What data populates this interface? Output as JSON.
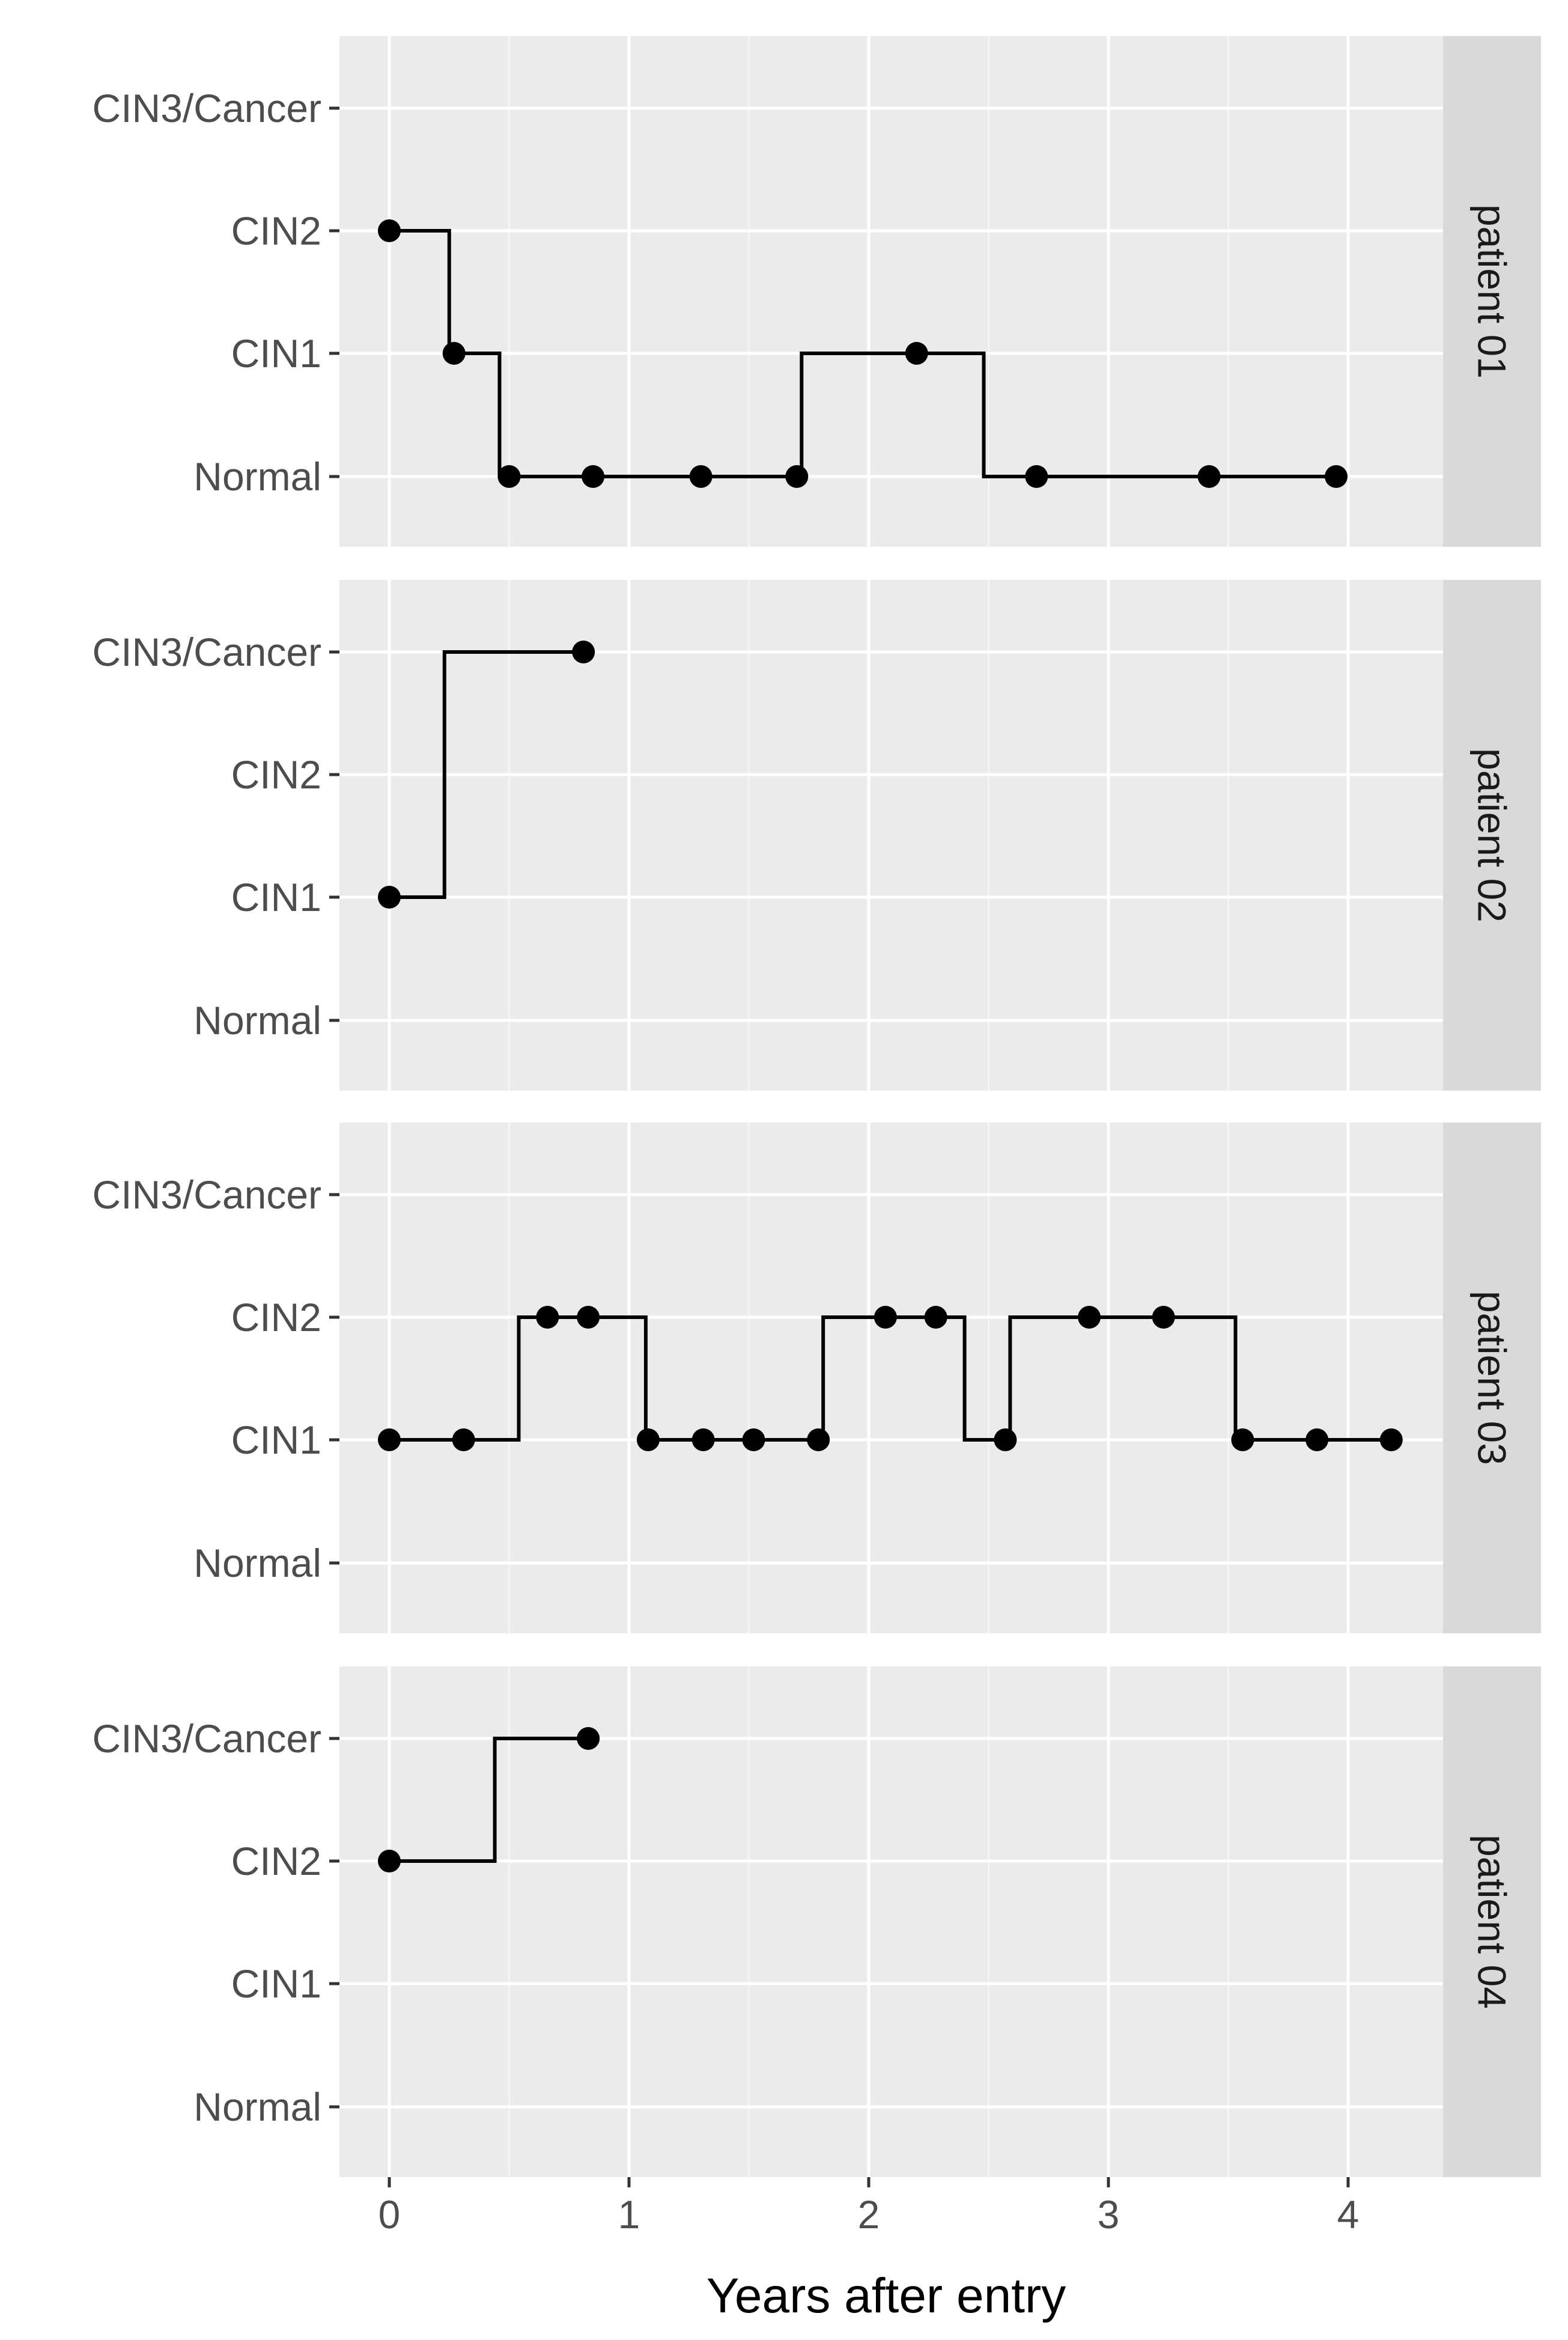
{
  "chart_data": {
    "type": "line",
    "subtype": "step-with-points",
    "xlabel": "Years after entry",
    "ylabel": "",
    "x_ticks": [
      0,
      1,
      2,
      3,
      4
    ],
    "xlim": [
      -0.2,
      4.4
    ],
    "y_levels": [
      "Normal",
      "CIN1",
      "CIN2",
      "CIN3/Cancer"
    ],
    "grid": true,
    "legend": "none",
    "colors": {
      "panel_bg": "#ebebeb",
      "strip_bg": "#d9d9d9",
      "grid_major": "#ffffff",
      "grid_minor": "#f5f5f5",
      "line": "#000000",
      "point": "#000000",
      "tick_text": "#4d4d4d"
    },
    "panels": [
      {
        "strip_label": "patient 01",
        "points": [
          {
            "x": 0.0,
            "y": "CIN2"
          },
          {
            "x": 0.27,
            "y": "CIN1"
          },
          {
            "x": 0.5,
            "y": "Normal"
          },
          {
            "x": 0.85,
            "y": "Normal"
          },
          {
            "x": 1.3,
            "y": "Normal"
          },
          {
            "x": 1.7,
            "y": "Normal"
          },
          {
            "x": 2.2,
            "y": "CIN1"
          },
          {
            "x": 2.7,
            "y": "Normal"
          },
          {
            "x": 3.42,
            "y": "Normal"
          },
          {
            "x": 3.95,
            "y": "Normal"
          }
        ],
        "step_path": [
          {
            "x": 0.0,
            "y": "CIN2"
          },
          {
            "x": 0.25,
            "y": "CIN2"
          },
          {
            "x": 0.25,
            "y": "CIN1"
          },
          {
            "x": 0.46,
            "y": "CIN1"
          },
          {
            "x": 0.46,
            "y": "Normal"
          },
          {
            "x": 1.72,
            "y": "Normal"
          },
          {
            "x": 1.72,
            "y": "CIN1"
          },
          {
            "x": 2.48,
            "y": "CIN1"
          },
          {
            "x": 2.48,
            "y": "Normal"
          },
          {
            "x": 3.95,
            "y": "Normal"
          }
        ]
      },
      {
        "strip_label": "patient 02",
        "points": [
          {
            "x": 0.0,
            "y": "CIN1"
          },
          {
            "x": 0.81,
            "y": "CIN3/Cancer"
          }
        ],
        "step_path": [
          {
            "x": 0.0,
            "y": "CIN1"
          },
          {
            "x": 0.23,
            "y": "CIN1"
          },
          {
            "x": 0.23,
            "y": "CIN3/Cancer"
          },
          {
            "x": 0.81,
            "y": "CIN3/Cancer"
          }
        ]
      },
      {
        "strip_label": "patient 03",
        "points": [
          {
            "x": 0.0,
            "y": "CIN1"
          },
          {
            "x": 0.31,
            "y": "CIN1"
          },
          {
            "x": 0.66,
            "y": "CIN2"
          },
          {
            "x": 0.83,
            "y": "CIN2"
          },
          {
            "x": 1.08,
            "y": "CIN1"
          },
          {
            "x": 1.31,
            "y": "CIN1"
          },
          {
            "x": 1.52,
            "y": "CIN1"
          },
          {
            "x": 1.79,
            "y": "CIN1"
          },
          {
            "x": 2.07,
            "y": "CIN2"
          },
          {
            "x": 2.28,
            "y": "CIN2"
          },
          {
            "x": 2.57,
            "y": "CIN1"
          },
          {
            "x": 2.92,
            "y": "CIN2"
          },
          {
            "x": 3.23,
            "y": "CIN2"
          },
          {
            "x": 3.56,
            "y": "CIN1"
          },
          {
            "x": 3.87,
            "y": "CIN1"
          },
          {
            "x": 4.18,
            "y": "CIN1"
          }
        ],
        "step_path": [
          {
            "x": 0.0,
            "y": "CIN1"
          },
          {
            "x": 0.54,
            "y": "CIN1"
          },
          {
            "x": 0.54,
            "y": "CIN2"
          },
          {
            "x": 1.07,
            "y": "CIN2"
          },
          {
            "x": 1.07,
            "y": "CIN1"
          },
          {
            "x": 1.81,
            "y": "CIN1"
          },
          {
            "x": 1.81,
            "y": "CIN2"
          },
          {
            "x": 2.4,
            "y": "CIN2"
          },
          {
            "x": 2.4,
            "y": "CIN1"
          },
          {
            "x": 2.59,
            "y": "CIN1"
          },
          {
            "x": 2.59,
            "y": "CIN2"
          },
          {
            "x": 3.53,
            "y": "CIN2"
          },
          {
            "x": 3.53,
            "y": "CIN1"
          },
          {
            "x": 4.18,
            "y": "CIN1"
          }
        ]
      },
      {
        "strip_label": "patient 04",
        "points": [
          {
            "x": 0.0,
            "y": "CIN2"
          },
          {
            "x": 0.83,
            "y": "CIN3/Cancer"
          }
        ],
        "step_path": [
          {
            "x": 0.0,
            "y": "CIN2"
          },
          {
            "x": 0.44,
            "y": "CIN2"
          },
          {
            "x": 0.44,
            "y": "CIN3/Cancer"
          },
          {
            "x": 0.83,
            "y": "CIN3/Cancer"
          }
        ]
      }
    ]
  }
}
